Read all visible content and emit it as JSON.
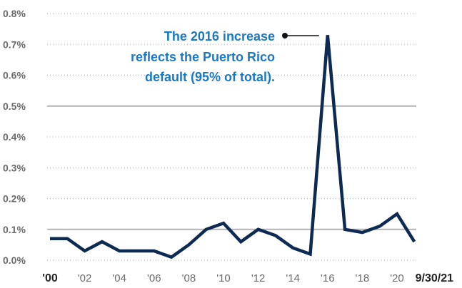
{
  "chart_data": {
    "type": "line",
    "x": [
      "2000",
      "2001",
      "2002",
      "2003",
      "2004",
      "2005",
      "2006",
      "2007",
      "2008",
      "2009",
      "2010",
      "2011",
      "2012",
      "2013",
      "2014",
      "2015",
      "2016",
      "2017",
      "2018",
      "2019",
      "2020",
      "9/30/21"
    ],
    "series": [
      {
        "values": [
          0.07,
          0.07,
          0.03,
          0.06,
          0.03,
          0.03,
          0.03,
          0.01,
          0.05,
          0.1,
          0.12,
          0.06,
          0.1,
          0.08,
          0.04,
          0.02,
          0.73,
          0.1,
          0.09,
          0.11,
          0.15,
          0.06
        ]
      }
    ],
    "ylim": [
      0,
      0.8
    ],
    "y_ticks": [
      0.0,
      0.1,
      0.2,
      0.3,
      0.4,
      0.5,
      0.6,
      0.7,
      0.8
    ],
    "y_tick_labels": [
      "0.0%",
      "0.1%",
      "0.2%",
      "0.3%",
      "0.4%",
      "0.5%",
      "0.6%",
      "0.7%",
      "0.8%"
    ],
    "x_tick_labels": [
      "'00",
      "'02",
      "'04",
      "'06",
      "'08",
      "'10",
      "'12",
      "'14",
      "'16",
      "'18",
      "'20",
      "9/30/21"
    ],
    "x_tick_index": [
      0,
      2,
      4,
      6,
      8,
      10,
      12,
      14,
      16,
      18,
      20,
      21
    ],
    "x_tick_bold": [
      true,
      false,
      false,
      false,
      false,
      false,
      false,
      false,
      false,
      false,
      false,
      true
    ],
    "reference_lines": [
      0.1,
      0.5
    ],
    "grid": "dotted-horizontal",
    "annotation": {
      "lines": [
        "The 2016 increase",
        "reflects the Puerto Rico",
        "default (95% of total)."
      ],
      "points_to_index": 16
    },
    "colors": {
      "line": "#0d2a52",
      "annotation": "#1a79c4",
      "grid": "#b5b5b5",
      "reference": "#b3b3b3",
      "ytick": "#6b6b6b",
      "xtick": "#6b6b6b"
    }
  }
}
